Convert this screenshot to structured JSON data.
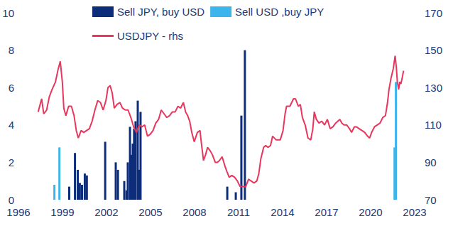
{
  "chart_data": {
    "type": "bar",
    "legend": "top",
    "grid": false,
    "xlim": [
      1996,
      2023
    ],
    "xticks": [
      1996,
      1999,
      2002,
      2005,
      2008,
      2011,
      2014,
      2017,
      2020,
      2023
    ],
    "ylim": [
      0,
      10
    ],
    "yticks": [
      0,
      2,
      4,
      6,
      8,
      10
    ],
    "y2lim": [
      70,
      170
    ],
    "y2ticks": [
      70,
      90,
      110,
      130,
      150,
      170
    ],
    "series": [
      {
        "name": "Sell JPY, buy USD",
        "type": "bar",
        "color": "#0d2d7a",
        "x": [
          1999.46,
          1999.85,
          2000.04,
          2000.18,
          2000.33,
          2000.52,
          2000.66,
          2001.91,
          2002.63,
          2002.78,
          2003.21,
          2003.36,
          2003.45,
          2003.6,
          2003.69,
          2003.79,
          2003.88,
          2003.98,
          2004.13,
          2004.22,
          2004.32,
          2010.23,
          2010.81,
          2011.19,
          2011.43
        ],
        "values": [
          0.7,
          2.5,
          1.6,
          0.9,
          0.8,
          1.4,
          1.3,
          3.1,
          2.0,
          1.6,
          1.0,
          0.5,
          2.0,
          3.9,
          2.4,
          3.0,
          3.8,
          4.2,
          5.3,
          1.6,
          4.7,
          0.7,
          0.4,
          4.5,
          8.0
        ]
      },
      {
        "name": "Sell USD ,buy JPY",
        "type": "bar",
        "color": "#3db5ec",
        "x": [
          1998.45,
          1998.79,
          2021.63,
          2021.72
        ],
        "values": [
          0.8,
          2.8,
          2.8,
          6.3
        ]
      },
      {
        "name": "USDJPY - rhs",
        "type": "line",
        "axis": "y2",
        "color": "#e8365d",
        "x": [
          1997.34,
          1997.58,
          1997.72,
          1997.92,
          1998.1,
          1998.29,
          1998.52,
          1998.71,
          1998.85,
          1998.99,
          1999.09,
          1999.23,
          1999.42,
          1999.61,
          1999.79,
          1999.94,
          2000.08,
          2000.27,
          2000.45,
          2000.64,
          2000.83,
          2001.02,
          2001.21,
          2001.4,
          2001.59,
          2001.77,
          2001.96,
          2002.1,
          2002.25,
          2002.39,
          2002.53,
          2002.72,
          2002.91,
          2003.09,
          2003.28,
          2003.47,
          2003.66,
          2003.85,
          2004.04,
          2004.23,
          2004.41,
          2004.6,
          2004.79,
          2004.98,
          2005.17,
          2005.36,
          2005.55,
          2005.73,
          2005.92,
          2006.11,
          2006.3,
          2006.49,
          2006.68,
          2006.87,
          2007.05,
          2007.24,
          2007.39,
          2007.53,
          2007.67,
          2007.81,
          2007.98,
          2008.19,
          2008.37,
          2008.47,
          2008.61,
          2008.75,
          2008.89,
          2009.08,
          2009.22,
          2009.41,
          2009.55,
          2009.7,
          2009.88,
          2010.07,
          2010.21,
          2010.36,
          2010.54,
          2010.73,
          2010.92,
          2011.11,
          2011.3,
          2011.49,
          2011.68,
          2011.86,
          2012.05,
          2012.24,
          2012.38,
          2012.52,
          2012.71,
          2012.85,
          2013.0,
          2013.18,
          2013.32,
          2013.56,
          2013.84,
          2014.03,
          2014.17,
          2014.27,
          2014.5,
          2014.74,
          2014.88,
          2015.07,
          2015.21,
          2015.35,
          2015.54,
          2015.73,
          2015.92,
          2016.06,
          2016.16,
          2016.3,
          2016.48,
          2016.67,
          2016.86,
          2017.05,
          2017.24,
          2017.43,
          2017.62,
          2017.9,
          2018.04,
          2018.18,
          2018.37,
          2018.56,
          2018.7,
          2018.89,
          2019.03,
          2019.22,
          2019.41,
          2019.6,
          2019.79,
          2019.93,
          2020.07,
          2020.26,
          2020.45,
          2020.64,
          2020.83,
          2021.01,
          2021.15,
          2021.25,
          2021.39,
          2021.54,
          2021.67,
          2021.75,
          2021.82,
          2021.91,
          2021.98,
          2022.06,
          2022.15,
          2022.24
        ],
        "values": [
          117,
          124,
          116,
          118,
          125,
          129,
          133,
          140,
          144,
          133,
          119,
          115,
          120,
          120,
          115,
          107,
          103,
          107,
          106,
          107,
          108,
          112,
          118,
          123,
          122,
          118,
          123,
          130,
          131,
          127,
          119,
          121,
          122,
          119,
          118,
          118,
          114,
          109,
          106,
          110,
          109,
          110,
          104,
          105,
          107,
          111,
          113,
          118,
          116,
          114,
          115,
          117,
          117,
          120,
          119,
          122,
          117,
          115,
          112,
          106,
          101,
          106,
          107,
          100,
          91,
          94,
          98,
          96,
          94,
          90,
          90,
          91,
          93,
          88,
          85,
          82,
          83,
          82,
          80,
          77,
          77,
          77,
          81,
          80,
          79,
          80,
          84,
          92,
          98,
          99,
          98,
          99,
          104,
          102,
          102,
          107,
          116,
          120,
          120,
          124,
          124,
          120,
          121,
          114,
          110,
          103,
          102,
          108,
          117,
          113,
          111,
          112,
          110,
          113,
          108,
          109,
          111,
          113,
          111,
          110,
          110,
          108,
          106,
          109,
          109,
          108,
          107,
          106,
          104,
          103,
          106,
          109,
          110,
          111,
          114,
          115,
          122,
          129,
          135,
          140,
          147,
          141,
          133,
          129,
          133,
          132,
          135,
          139
        ]
      }
    ]
  }
}
